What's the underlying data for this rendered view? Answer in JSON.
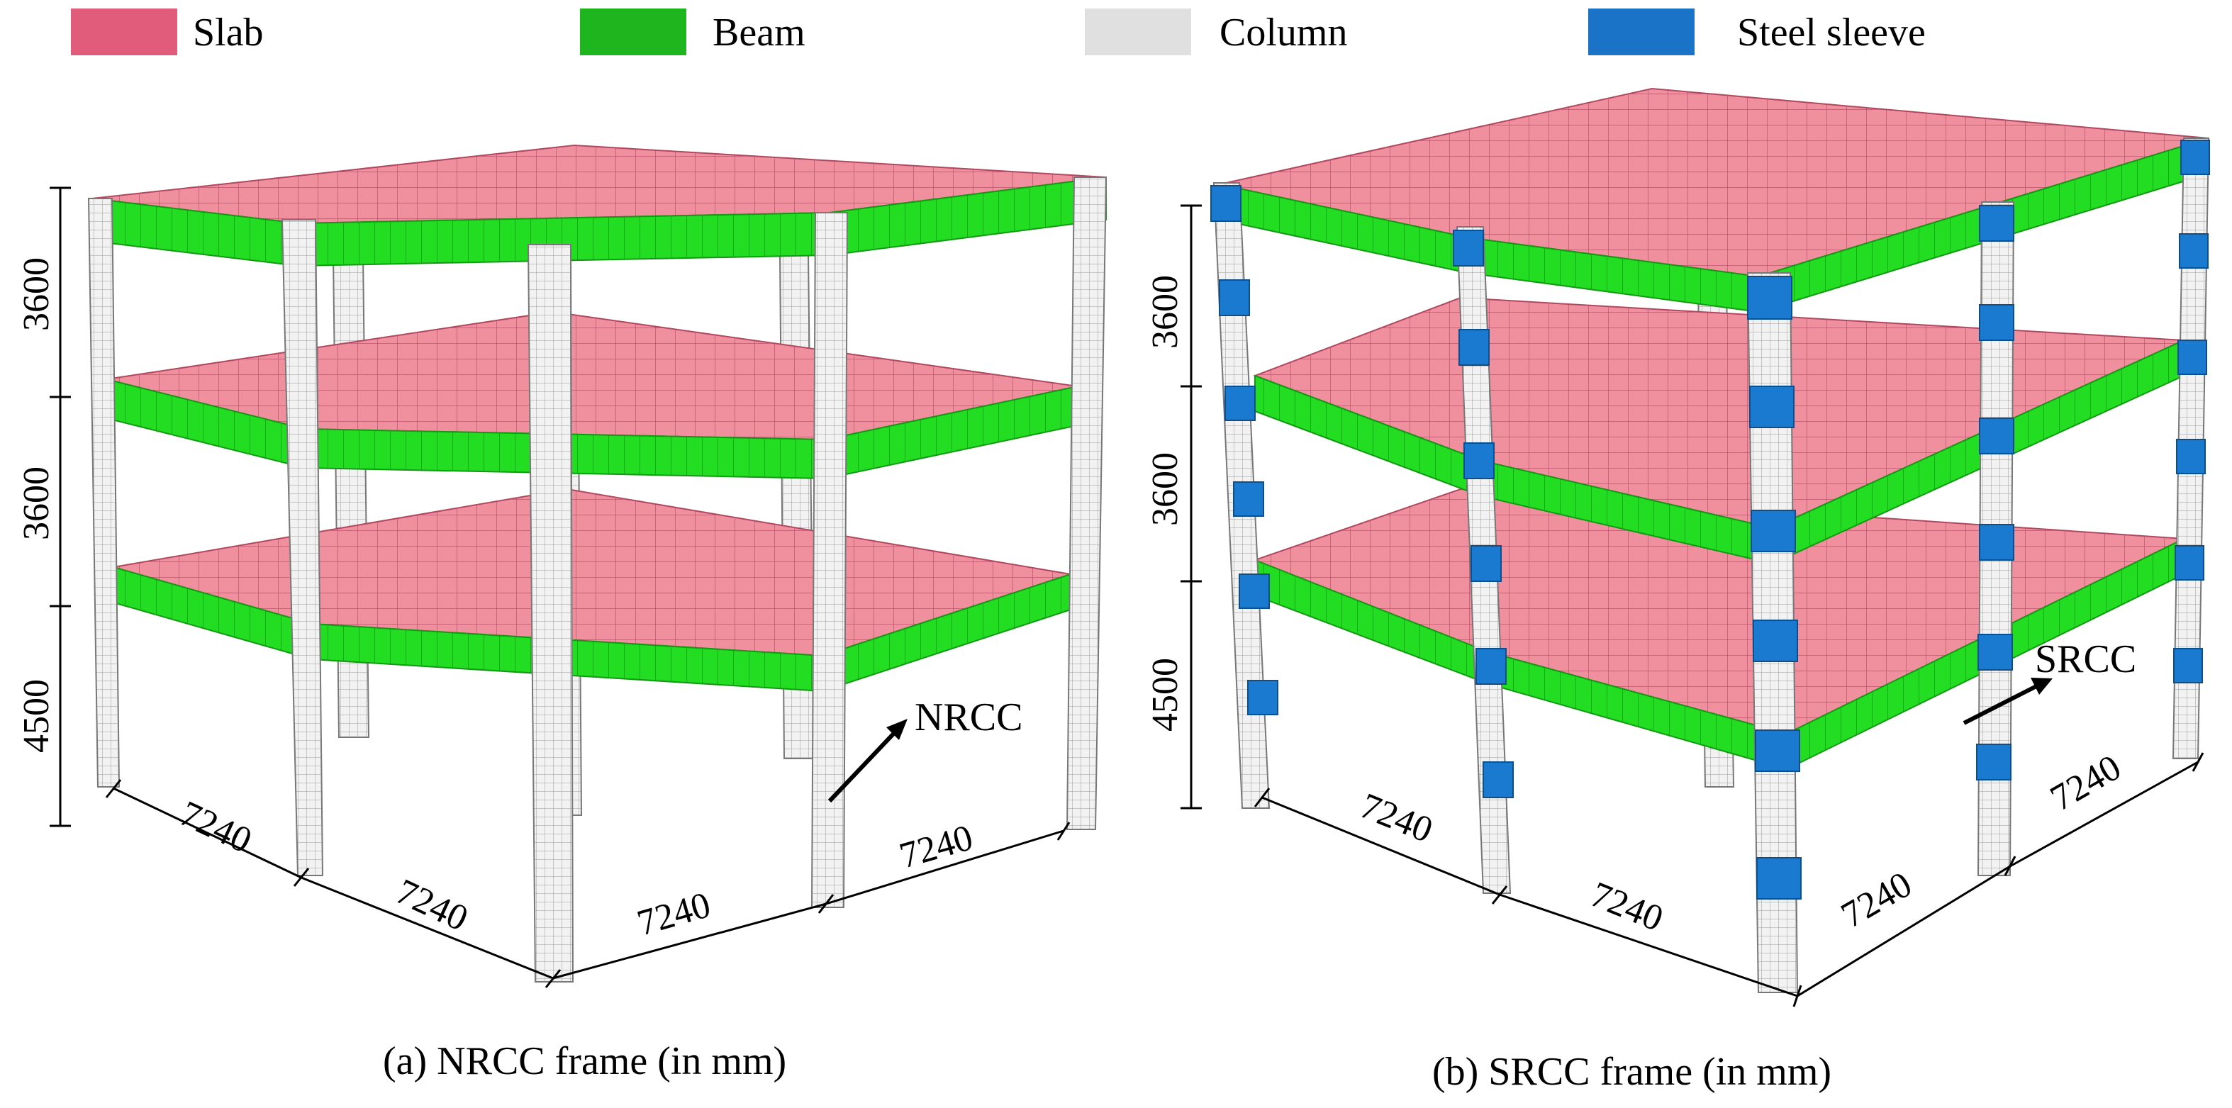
{
  "legend": {
    "items": [
      {
        "key": "slab",
        "label": "Slab",
        "color": "#e05c7a"
      },
      {
        "key": "beam",
        "label": "Beam",
        "color": "#1fb51f"
      },
      {
        "key": "column",
        "label": "Column",
        "color": "#e0e0e0"
      },
      {
        "key": "sleeve",
        "label": "Steel sleeve",
        "color": "#1a73c7"
      }
    ]
  },
  "colors": {
    "slab": "#f0909f",
    "slab_grid": "#b04860",
    "beam": "#22dd22",
    "beam_dark": "#139a13",
    "column": "#f2f2f2",
    "column_grid": "#9a9a9a",
    "sleeve": "#1a7ad0",
    "line": "#000000"
  },
  "frame_a": {
    "caption": "(a) NRCC frame (in mm)",
    "tag": "NRCC",
    "heights": [
      "3600",
      "3600",
      "4500"
    ],
    "spans": [
      "7240",
      "7240",
      "7240",
      "7240"
    ]
  },
  "frame_b": {
    "caption": "(b) SRCC frame (in mm)",
    "tag": "SRCC",
    "heights": [
      "3600",
      "3600",
      "4500"
    ],
    "spans": [
      "7240",
      "7240",
      "7240",
      "7240"
    ]
  }
}
